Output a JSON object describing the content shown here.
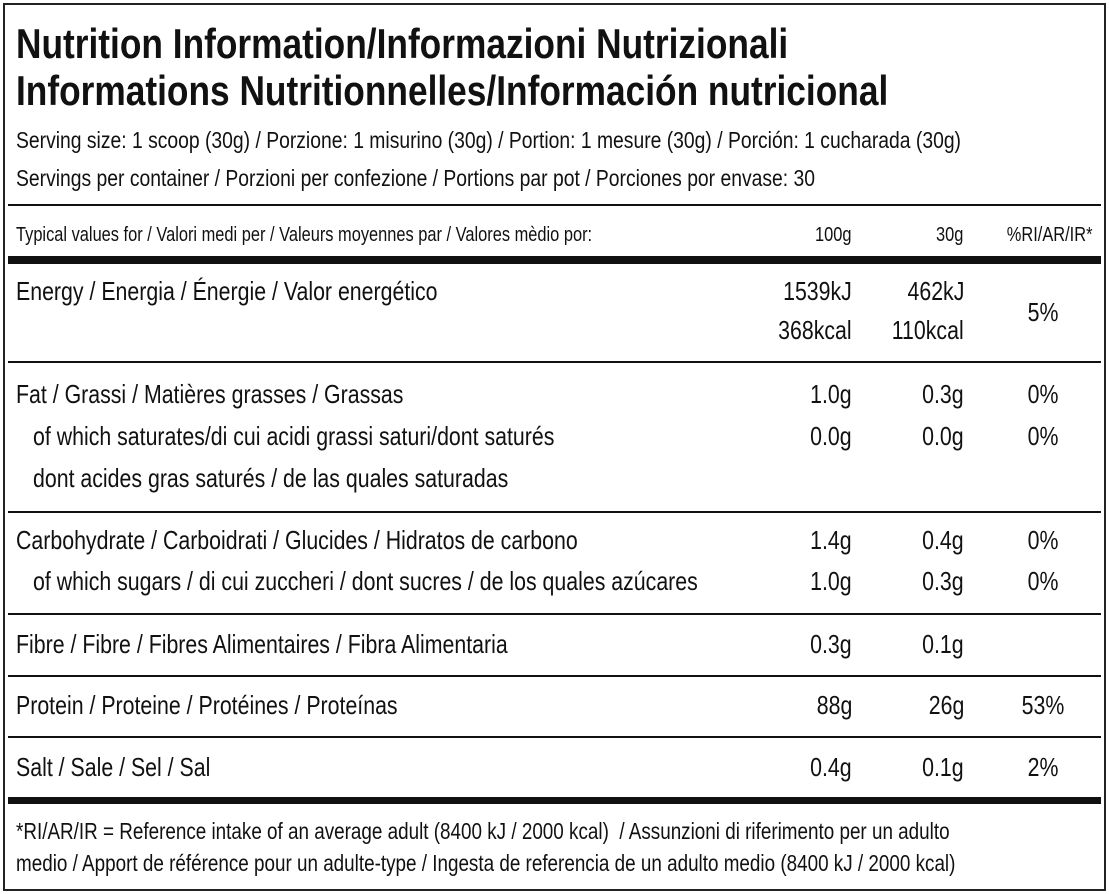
{
  "header": {
    "title_lines": [
      "Nutrition Information/Informazioni Nutrizionali",
      "Informations Nutritionnelles/Información nutricional"
    ],
    "serving_size": "Serving size: 1 scoop (30g) / Porzione: 1 misurino (30g) / Portion: 1 mesure (30g) / Porción: 1 cucharada (30g)",
    "servings_per_container": "Servings per container / Porzioni per confezione / Portions par pot / Porciones por envase: 30"
  },
  "table": {
    "header": {
      "label": "Typical values for / Valori medi per / Valeurs moyennes par / Valores mèdio por:",
      "per_100g": "100g",
      "per_30g": "30g",
      "ri": "%RI/AR/IR*"
    },
    "rows": [
      {
        "label": [
          "Energy / Energia / Énergie / Valor energético"
        ],
        "per_100g": [
          "1539kJ",
          "368kcal"
        ],
        "per_30g": [
          "462kJ",
          "110kcal"
        ],
        "ri": "5%"
      },
      {
        "label": [
          "Fat / Grassi / Matières grasses / Grassas"
        ],
        "per_100g": [
          "1.0g"
        ],
        "per_30g": [
          "0.3g"
        ],
        "ri": "0%"
      },
      {
        "label": [
          "of which saturates/di cui acidi grassi saturi/dont saturés",
          "dont acides gras saturés / de las quales saturadas"
        ],
        "per_100g": [
          "0.0g"
        ],
        "per_30g": [
          "0.0g"
        ],
        "ri": "0%"
      },
      {
        "label": [
          "Carbohydrate / Carboidrati / Glucides / Hidratos de carbono"
        ],
        "per_100g": [
          "1.4g"
        ],
        "per_30g": [
          "0.4g"
        ],
        "ri": "0%"
      },
      {
        "label": [
          "of which sugars / di cui zuccheri / dont sucres / de los quales azúcares"
        ],
        "per_100g": [
          "1.0g"
        ],
        "per_30g": [
          "0.3g"
        ],
        "ri": "0%"
      },
      {
        "label": [
          "Fibre / Fibre / Fibres Alimentaires / Fibra Alimentaria"
        ],
        "per_100g": [
          "0.3g"
        ],
        "per_30g": [
          "0.1g"
        ]
      },
      {
        "label": [
          "Protein / Proteine / Protéines / Proteínas"
        ],
        "per_100g": [
          "88g"
        ],
        "per_30g": [
          "26g"
        ],
        "ri": "53%"
      },
      {
        "label": [
          "Salt / Sale / Sel / Sal"
        ],
        "per_100g": [
          "0.4g"
        ],
        "per_30g": [
          "0.1g"
        ],
        "ri": "2%"
      }
    ]
  },
  "footnote": [
    "*RI/AR/IR = Reference intake of an average adult (8400 kJ / 2000 kcal)  / Assunzioni di riferimento per un adulto",
    "medio / Apport de référence pour un adulte-type / Ingesta de referencia de un adulto medio (8400 kJ / 2000 kcal)"
  ]
}
